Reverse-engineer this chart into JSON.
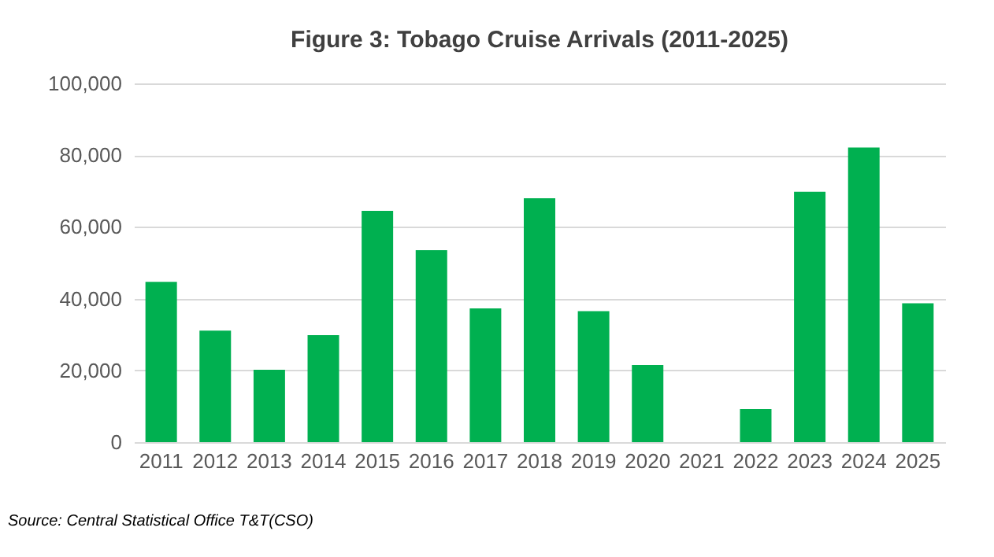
{
  "chart_data": {
    "type": "bar",
    "title": "Figure 3: Tobago Cruise Arrivals (2011-2025)",
    "categories": [
      "2011",
      "2012",
      "2013",
      "2014",
      "2015",
      "2016",
      "2017",
      "2018",
      "2019",
      "2020",
      "2021",
      "2022",
      "2023",
      "2024",
      "2025"
    ],
    "values": [
      44700,
      31100,
      20200,
      29800,
      64500,
      53500,
      37300,
      68000,
      36500,
      21500,
      null,
      9200,
      69800,
      82100,
      38700
    ],
    "color": "#00b050",
    "ylim": [
      0,
      100000
    ],
    "yticks": [
      0,
      {
        "value": 20000,
        "label": "20,000"
      },
      {
        "value": 40000,
        "label": "40,000"
      },
      {
        "value": 60000,
        "label": "60,000"
      },
      {
        "value": 80000,
        "label": "80,000"
      },
      {
        "value": 100000,
        "label": "100,000"
      }
    ],
    "grid": "y",
    "annotations": [
      "Source: Central Statistical Office T&T(CSO)"
    ]
  }
}
